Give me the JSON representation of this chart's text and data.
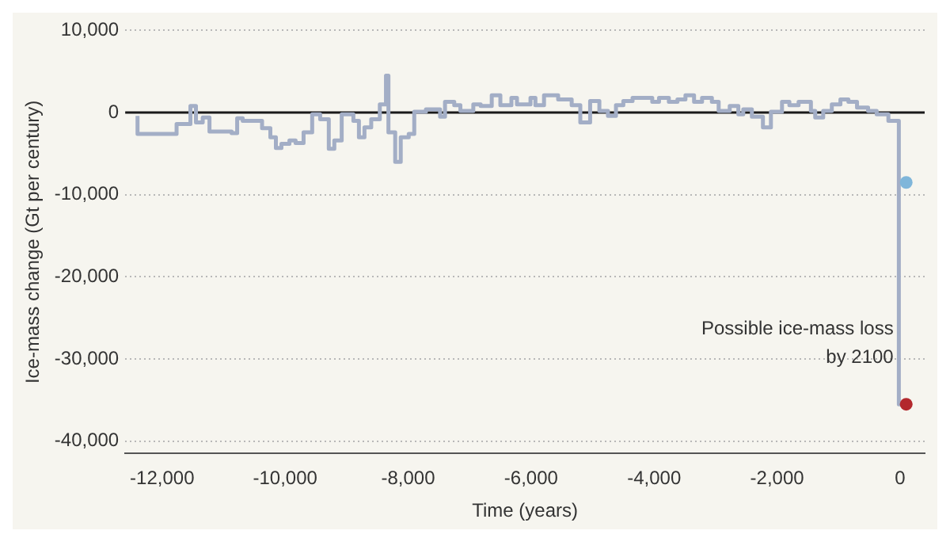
{
  "chart_data": {
    "type": "step",
    "xlabel": "Time (years)",
    "ylabel": "Ice-mass change (Gt per century)",
    "xlim": [
      -12600,
      400
    ],
    "ylim": [
      -41500,
      10000
    ],
    "xticks": [
      {
        "value": -12000,
        "label": "-12,000"
      },
      {
        "value": -10000,
        "label": "-10,000"
      },
      {
        "value": -8000,
        "label": "-8,000"
      },
      {
        "value": -6000,
        "label": "-6,000"
      },
      {
        "value": -4000,
        "label": "-4,000"
      },
      {
        "value": -2000,
        "label": "-2,000"
      },
      0
    ],
    "yticks": [
      {
        "value": -40000,
        "label": "-40,000"
      },
      {
        "value": -30000,
        "label": "-30,000"
      },
      {
        "value": -20000,
        "label": "-20,000"
      },
      {
        "value": -10000,
        "label": "-10,000"
      },
      0,
      {
        "value": 10000,
        "label": "10,000"
      }
    ],
    "grid": "y",
    "legend": false,
    "marker": "none",
    "line_style": "solid",
    "ref_lines": [
      {
        "axis": "y",
        "value": 0,
        "color": "#1a1a1a"
      }
    ],
    "annotations": [
      {
        "text": "Possible ice-mass loss by 2100",
        "x": 100,
        "y": -27000
      }
    ],
    "series": [
      {
        "color": "#a3aec6",
        "x": [
          -12400,
          -11765,
          -11540,
          -11450,
          -11340,
          -11230,
          -10870,
          -10780,
          -10690,
          -10375,
          -10240,
          -10150,
          -10060,
          -9930,
          -9830,
          -9700,
          -9560,
          -9430,
          -9290,
          -9200,
          -9080,
          -8890,
          -8800,
          -8710,
          -8600,
          -8460,
          -8360,
          -8320,
          -8210,
          -8120,
          -7990,
          -7900,
          -7710,
          -7480,
          -7400,
          -7250,
          -7150,
          -6940,
          -6820,
          -6640,
          -6500,
          -6320,
          -6230,
          -6010,
          -5930,
          -5790,
          -5560,
          -5340,
          -5200,
          -5040,
          -4890,
          -4750,
          -4620,
          -4500,
          -4350,
          -4030,
          -3920,
          -3760,
          -3620,
          -3490,
          -3350,
          -3220,
          -3060,
          -2950,
          -2770,
          -2630,
          -2550,
          -2410,
          -2230,
          -2100,
          -1920,
          -1800,
          -1650,
          -1450,
          -1380,
          -1250,
          -1110,
          -970,
          -840,
          -700,
          -520,
          -380,
          -190,
          -20,
          100
        ],
        "values": [
          -400,
          -2600,
          -1400,
          800,
          -1200,
          -600,
          -2300,
          -2500,
          -700,
          -1000,
          -1900,
          -3000,
          -4300,
          -3800,
          -3400,
          -3700,
          -2400,
          -200,
          -800,
          -4400,
          -3400,
          -200,
          -1000,
          -3000,
          -1800,
          -800,
          1000,
          4500,
          -2400,
          -6000,
          -3000,
          -2600,
          100,
          400,
          -500,
          1300,
          900,
          200,
          1000,
          800,
          2100,
          900,
          1800,
          1000,
          1800,
          900,
          2100,
          1600,
          900,
          -1200,
          1400,
          200,
          -400,
          900,
          1400,
          1800,
          1300,
          1800,
          1300,
          1600,
          2100,
          1300,
          1800,
          1300,
          200,
          800,
          -200,
          400,
          -500,
          -1800,
          100,
          1300,
          900,
          1300,
          200,
          -600,
          200,
          1000,
          1600,
          1300,
          600,
          200,
          -200,
          -1000,
          -35500
        ]
      },
      {
        "type": "scatter",
        "marker": "circle",
        "color": "#7fb6da",
        "x": [
          100
        ],
        "values": [
          -8500
        ]
      },
      {
        "type": "scatter",
        "marker": "circle",
        "color": "#b3282d",
        "x": [
          100
        ],
        "values": [
          -35500
        ]
      }
    ]
  }
}
